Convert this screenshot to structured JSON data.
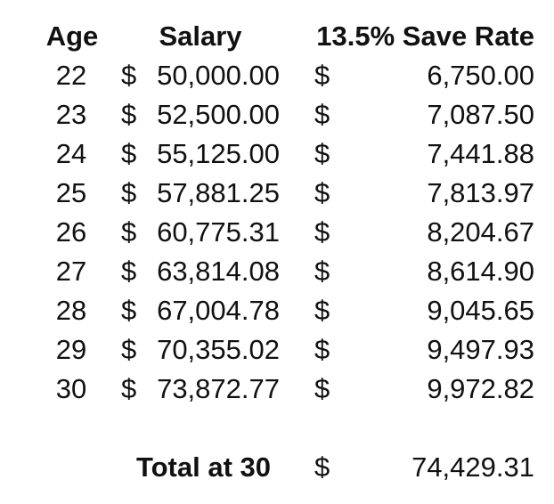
{
  "headers": {
    "age": "Age",
    "salary": "Salary",
    "save_rate": "13.5% Save Rate"
  },
  "rows": [
    {
      "age": "22",
      "salary_symbol": "$",
      "salary": "50,000.00",
      "save_symbol": "$",
      "save": "6,750.00"
    },
    {
      "age": "23",
      "salary_symbol": "$",
      "salary": "52,500.00",
      "save_symbol": "$",
      "save": "7,087.50"
    },
    {
      "age": "24",
      "salary_symbol": "$",
      "salary": "55,125.00",
      "save_symbol": "$",
      "save": "7,441.88"
    },
    {
      "age": "25",
      "salary_symbol": "$",
      "salary": "57,881.25",
      "save_symbol": "$",
      "save": "7,813.97"
    },
    {
      "age": "26",
      "salary_symbol": "$",
      "salary": "60,775.31",
      "save_symbol": "$",
      "save": "8,204.67"
    },
    {
      "age": "27",
      "salary_symbol": "$",
      "salary": "63,814.08",
      "save_symbol": "$",
      "save": "8,614.90"
    },
    {
      "age": "28",
      "salary_symbol": "$",
      "salary": "67,004.78",
      "save_symbol": "$",
      "save": "9,045.65"
    },
    {
      "age": "29",
      "salary_symbol": "$",
      "salary": "70,355.02",
      "save_symbol": "$",
      "save": "9,497.93"
    },
    {
      "age": "30",
      "salary_symbol": "$",
      "salary": "73,872.77",
      "save_symbol": "$",
      "save": "9,972.82"
    }
  ],
  "total": {
    "label": "Total at 30",
    "symbol": "$",
    "value": "74,429.31"
  }
}
